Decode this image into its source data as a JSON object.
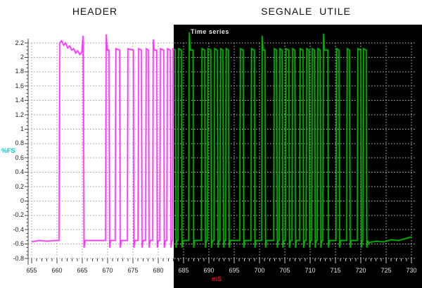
{
  "chart_data": {
    "type": "line",
    "titles": {
      "header": "HEADER",
      "utile": "SEGNALE UTILE"
    },
    "panel_label": "Time series",
    "xlabel": "mS",
    "ylabel": "%FS",
    "xlim": [
      655,
      730
    ],
    "ylim": [
      -0.8,
      2.2
    ],
    "grid": true,
    "baseline": -0.55,
    "high_level": 2.1,
    "color_split_ms": 683.1,
    "x_ticks": [
      {
        "v": 655,
        "label": "655"
      },
      {
        "v": 660,
        "label": "660"
      },
      {
        "v": 665,
        "label": "665"
      },
      {
        "v": 670,
        "label": "670"
      },
      {
        "v": 675,
        "label": "675"
      },
      {
        "v": 680,
        "label": "680"
      },
      {
        "v": 685,
        "label": "685"
      },
      {
        "v": 690,
        "label": "690"
      },
      {
        "v": 695,
        "label": "695"
      },
      {
        "v": 700,
        "label": "700"
      },
      {
        "v": 705,
        "label": "705"
      },
      {
        "v": 710,
        "label": "710"
      },
      {
        "v": 715,
        "label": "715"
      },
      {
        "v": 720,
        "label": "720"
      },
      {
        "v": 725,
        "label": "725"
      },
      {
        "v": 730,
        "label": "730"
      }
    ],
    "y_ticks": [
      {
        "v": 2.2,
        "label": "2.2"
      },
      {
        "v": 2,
        "label": "2"
      },
      {
        "v": 1.8,
        "label": "1.8"
      },
      {
        "v": 1.6,
        "label": "1.6"
      },
      {
        "v": 1.4,
        "label": "1.4"
      },
      {
        "v": 1.2,
        "label": "1.2"
      },
      {
        "v": 1,
        "label": "1"
      },
      {
        "v": 0.8,
        "label": "0.8"
      },
      {
        "v": 0.6,
        "label": "0.6"
      },
      {
        "v": 0.4,
        "label": "0.4"
      },
      {
        "v": 0.2,
        "label": "0.2"
      },
      {
        "v": 0,
        "label": "0"
      },
      {
        "v": -0.2,
        "label": "-0.2"
      },
      {
        "v": -0.4,
        "label": "-0.4"
      },
      {
        "v": -0.6,
        "label": "-0.6"
      },
      {
        "v": -0.8,
        "label": "-0.8"
      }
    ],
    "lead_points": [
      [
        655,
        -0.57
      ],
      [
        656.5,
        -0.55
      ],
      [
        658,
        -0.56
      ],
      [
        659.9,
        -0.55
      ]
    ],
    "pulses": [
      {
        "start": 660.4,
        "end": 665.35,
        "top": [
          [
            660.55,
            2.2
          ],
          [
            660.9,
            2.23
          ],
          [
            661.3,
            2.17
          ],
          [
            661.7,
            2.2
          ],
          [
            662.1,
            2.13
          ],
          [
            662.5,
            2.16
          ],
          [
            662.9,
            2.1
          ],
          [
            663.3,
            2.12
          ],
          [
            663.7,
            2.06
          ],
          [
            664.1,
            2.09
          ],
          [
            664.5,
            2.04
          ],
          [
            664.9,
            2.07
          ],
          [
            665.15,
            2.3
          ]
        ]
      },
      {
        "start": 669.6,
        "end": 670.4,
        "spike": 2.32
      },
      {
        "start": 671.5,
        "end": 672.5
      },
      {
        "start": 673.9,
        "end": 675.2
      },
      {
        "start": 676.0,
        "end": 676.8
      },
      {
        "start": 677.5,
        "end": 678.2
      },
      {
        "start": 678.9,
        "end": 679.8,
        "spike": 2.25
      },
      {
        "start": 680.3,
        "end": 681.2
      },
      {
        "start": 681.7,
        "end": 682.5
      },
      {
        "start": 682.8,
        "end": 683.5
      },
      {
        "start": 683.9,
        "end": 684.7
      },
      {
        "start": 686.0,
        "end": 687.0,
        "spike": 2.35
      },
      {
        "start": 688.5,
        "end": 689.3
      },
      {
        "start": 689.7,
        "end": 690.5
      },
      {
        "start": 691.0,
        "end": 691.8
      },
      {
        "start": 692.2,
        "end": 692.9
      },
      {
        "start": 693.3,
        "end": 694.0
      },
      {
        "start": 696.1,
        "end": 696.9
      },
      {
        "start": 698.3,
        "end": 699.1
      },
      {
        "start": 700.4,
        "end": 701.2,
        "spike": 2.3
      },
      {
        "start": 702.8,
        "end": 703.5
      },
      {
        "start": 703.9,
        "end": 704.6
      },
      {
        "start": 705.1,
        "end": 705.9
      },
      {
        "start": 706.4,
        "end": 707.1
      },
      {
        "start": 707.9,
        "end": 708.7
      },
      {
        "start": 709.2,
        "end": 709.9
      },
      {
        "start": 710.3,
        "end": 711.0
      },
      {
        "start": 711.4,
        "end": 712.1
      },
      {
        "start": 712.5,
        "end": 713.6,
        "spike": 2.33
      },
      {
        "start": 715.1,
        "end": 715.8
      },
      {
        "start": 717.2,
        "end": 717.9
      },
      {
        "start": 719.3,
        "end": 720.1
      },
      {
        "start": 720.4,
        "end": 721.2
      }
    ],
    "tail_points": [
      [
        721.5,
        -0.58
      ],
      [
        723,
        -0.56
      ],
      [
        724.5,
        -0.57
      ],
      [
        726,
        -0.54
      ],
      [
        727.5,
        -0.55
      ],
      [
        729,
        -0.52
      ],
      [
        730,
        -0.5
      ]
    ],
    "colors": {
      "header_trace": "#ff2bff",
      "utile_trace": "#00bb00",
      "panel_bg": "#000000",
      "grid_on_white": "#9a9a9a",
      "grid_on_black": "#c4c4c4",
      "axis": "#444444",
      "tick_label_on_white": "#222222",
      "tick_label_on_black": "#e0e0e0",
      "ylabel_color": "#00cccc",
      "xlabel_color": "#dd1111"
    }
  }
}
